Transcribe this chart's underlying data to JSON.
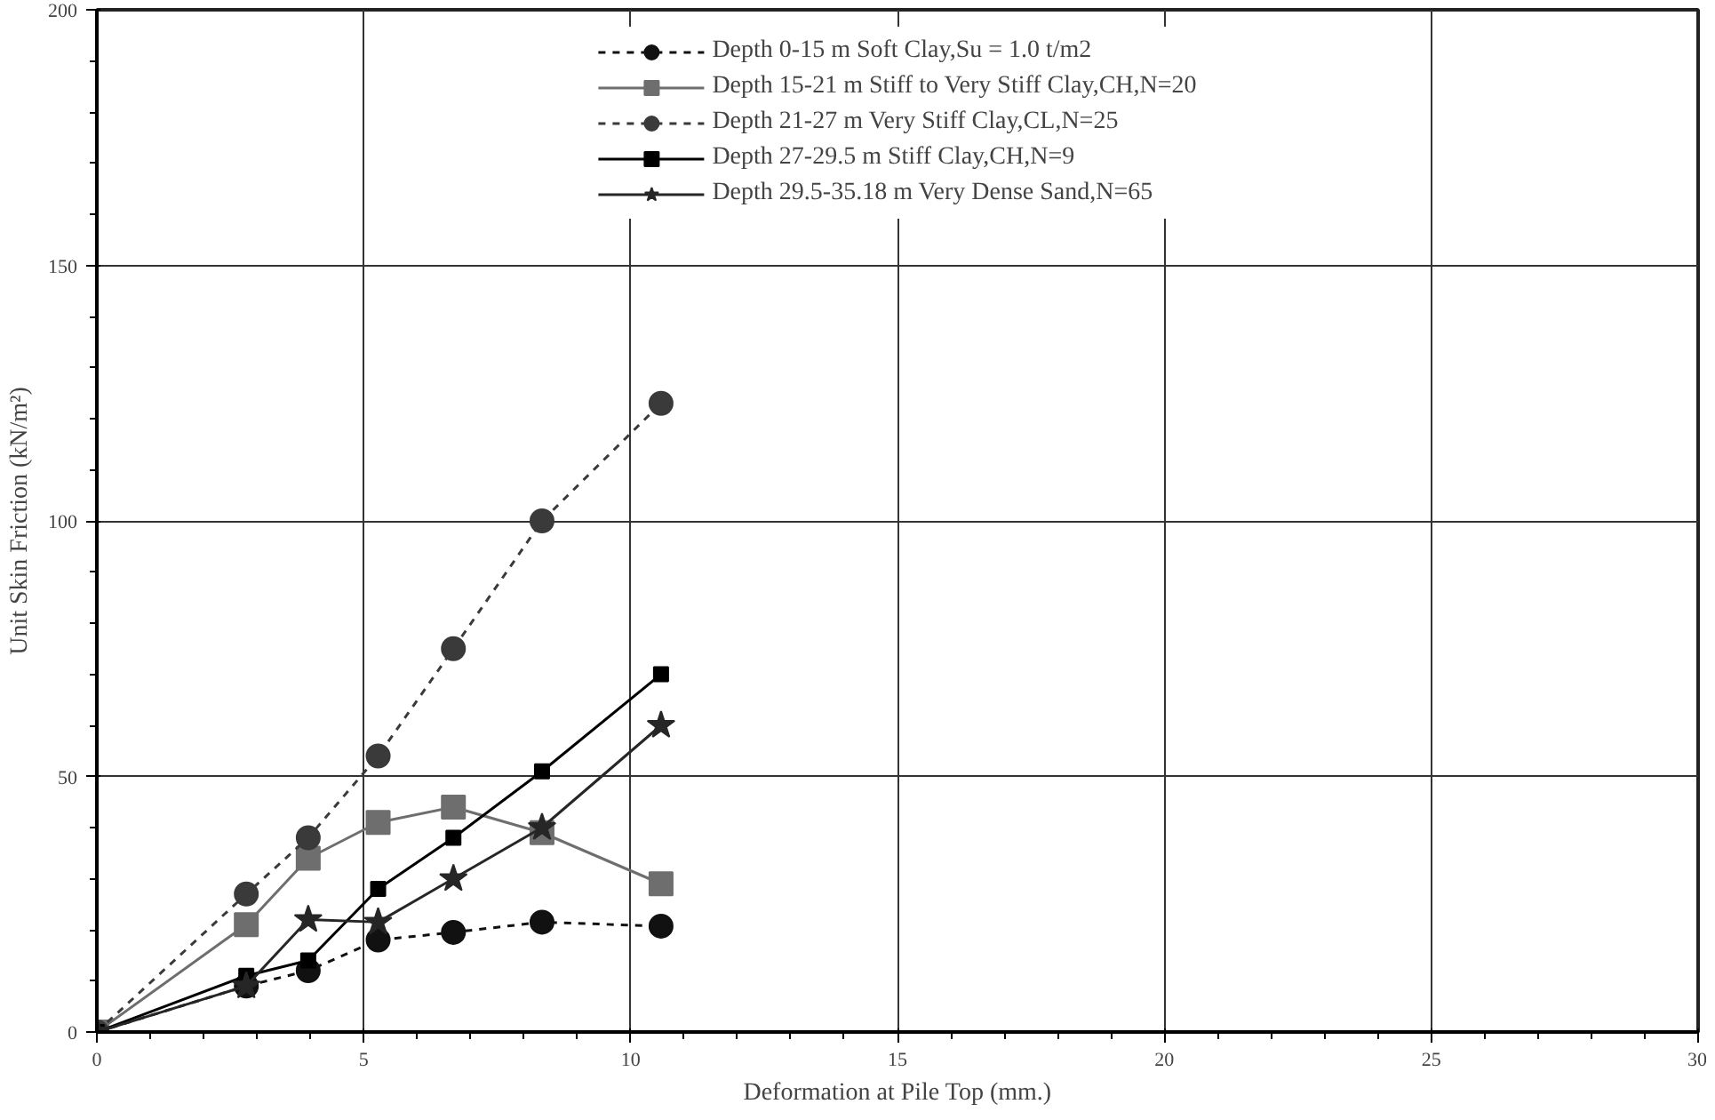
{
  "chart_data": {
    "type": "line",
    "xlabel": "Deformation at Pile Top (mm.)",
    "ylabel": "Unit Skin Friction (kN/m²)",
    "xlim": [
      0,
      30
    ],
    "ylim": [
      0,
      200
    ],
    "xticks": [
      0,
      5,
      10,
      15,
      20,
      25,
      30
    ],
    "yticks": [
      0,
      50,
      100,
      150,
      200
    ],
    "grid": true,
    "legend": "top",
    "x": [
      0,
      2.8,
      3.96,
      5.27,
      6.68,
      8.34,
      10.57
    ],
    "series": [
      {
        "name": "Depth 0-15 m Soft Clay,Su = 1.0 t/m2",
        "color": "#111111",
        "marker": "circle",
        "line_style": "dashed",
        "values": [
          0,
          9,
          12,
          18,
          19.5,
          21.5,
          20.7
        ]
      },
      {
        "name": "Depth 15-21 m Stiff to Very Stiff Clay,CH,N=20",
        "color": "#6e6e6e",
        "marker": "square",
        "line_style": "solid",
        "values": [
          0,
          21,
          34,
          41,
          44,
          39,
          29
        ]
      },
      {
        "name": "Depth 21-27 m Very Stiff Clay,CL,N=25",
        "color": "#3a3a3a",
        "marker": "circle",
        "line_style": "dashed",
        "values": [
          0,
          27,
          38,
          54,
          75,
          100,
          123
        ]
      },
      {
        "name": "Depth 27-29.5 m Stiff Clay,CH,N=9",
        "color": "#000000",
        "marker": "square",
        "line_style": "solid",
        "values": [
          0,
          11,
          14,
          28,
          38,
          51,
          70
        ]
      },
      {
        "name": "Depth 29.5-35.18 m Very Dense Sand,N=65",
        "color": "#262626",
        "marker": "star",
        "line_style": "solid",
        "values": [
          0,
          9,
          22,
          21.5,
          30,
          40,
          60
        ]
      }
    ]
  }
}
